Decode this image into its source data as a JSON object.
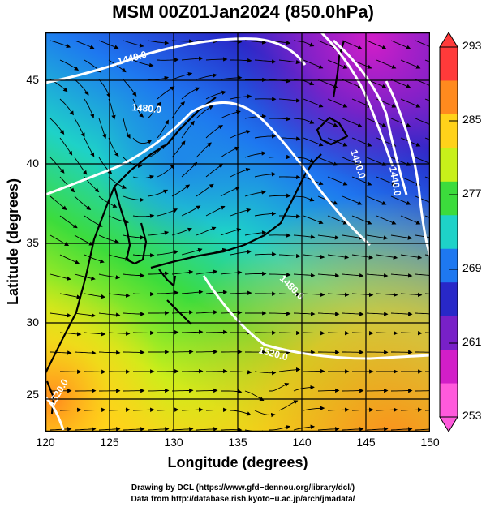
{
  "title": "MSM 00Z01Jan2024 (850.0hPa)",
  "xlabel": "Longitude (degrees)",
  "ylabel": "Latitude  (degrees)",
  "xticks": [
    "120",
    "125",
    "130",
    "135",
    "140",
    "145",
    "150"
  ],
  "yticks": [
    "45",
    "40",
    "35",
    "30",
    "25"
  ],
  "colorbar": {
    "labels": [
      "293",
      "285",
      "277",
      "269",
      "261",
      "253"
    ],
    "colors": [
      "#ff3a3a",
      "#ff8a1e",
      "#ffd21a",
      "#c8f01a",
      "#3cdc3c",
      "#1ed2c8",
      "#1e78f0",
      "#2828c8",
      "#7820c8",
      "#d21ec8",
      "#ff5adc"
    ]
  },
  "contours": [
    "1440.0",
    "1480.0",
    "1400.0",
    "1440.0",
    "1520.0",
    "1480.0",
    "1520.0"
  ],
  "credit1": "Drawing by DCL (https://www.gfd−dennou.org/library/dcl/)",
  "credit2": "Data from http://database.rish.kyoto−u.ac.jp/arch/jmadata/",
  "chart_data": {
    "type": "heatmap",
    "title": "MSM 00Z01Jan2024 (850.0hPa)",
    "xlabel": "Longitude (degrees)",
    "ylabel": "Latitude  (degrees)",
    "xlim": [
      120,
      150
    ],
    "ylim": [
      22.5,
      47.5
    ],
    "colorbar_range": [
      253,
      293
    ],
    "colorbar_ticks": [
      253,
      261,
      269,
      277,
      285,
      293
    ],
    "contour_levels": [
      1400,
      1440,
      1480,
      1520
    ],
    "grid": true
  }
}
